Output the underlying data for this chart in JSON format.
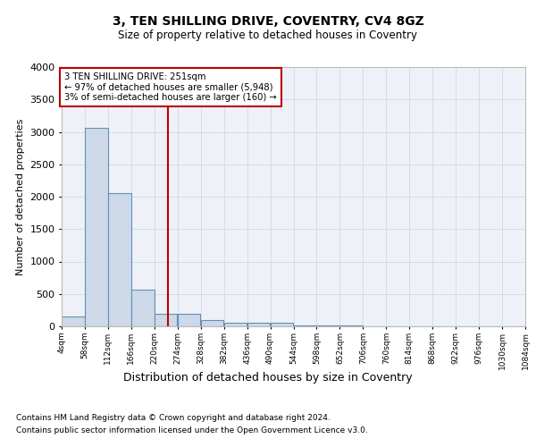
{
  "title1": "3, TEN SHILLING DRIVE, COVENTRY, CV4 8GZ",
  "title2": "Size of property relative to detached houses in Coventry",
  "xlabel": "Distribution of detached houses by size in Coventry",
  "ylabel": "Number of detached properties",
  "footer1": "Contains HM Land Registry data © Crown copyright and database right 2024.",
  "footer2": "Contains public sector information licensed under the Open Government Licence v3.0.",
  "annotation_line1": "3 TEN SHILLING DRIVE: 251sqm",
  "annotation_line2": "← 97% of detached houses are smaller (5,948)",
  "annotation_line3": "3% of semi-detached houses are larger (160) →",
  "property_size_sqm": 251,
  "bar_color": "#cdd9e8",
  "bar_edge_color": "#6090b8",
  "vline_color": "#bb0000",
  "annotation_box_color": "#bb0000",
  "bin_edges": [
    4,
    58,
    112,
    166,
    220,
    274,
    328,
    382,
    436,
    490,
    544,
    598,
    652,
    706,
    760,
    814,
    868,
    922,
    976,
    1030,
    1084
  ],
  "bin_counts": [
    150,
    3060,
    2060,
    560,
    200,
    200,
    95,
    60,
    55,
    50,
    10,
    10,
    8,
    5,
    3,
    2,
    2,
    2,
    1,
    1
  ],
  "ylim": [
    0,
    4000
  ],
  "yticks": [
    0,
    500,
    1000,
    1500,
    2000,
    2500,
    3000,
    3500,
    4000
  ],
  "background_color": "#eef2f8",
  "grid_color": "#c8d4e4"
}
